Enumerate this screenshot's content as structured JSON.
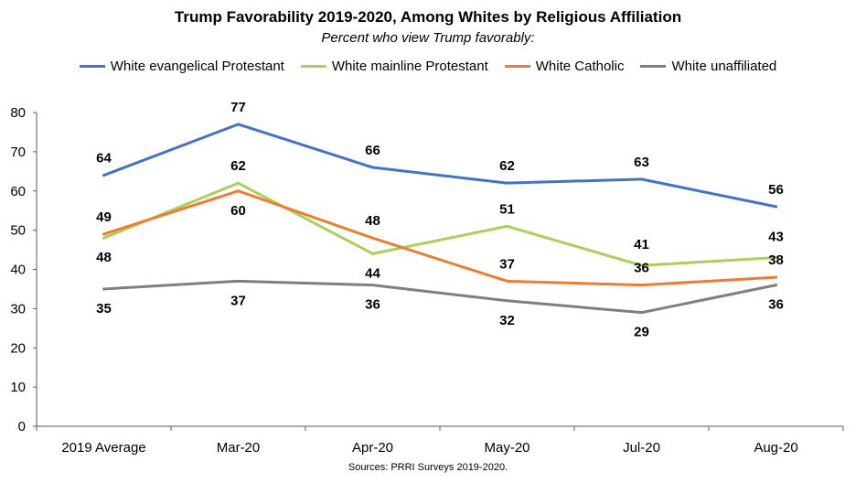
{
  "chart_data": {
    "type": "line",
    "title": "Trump Favorability 2019-2020, Among Whites by Religious Affiliation",
    "subtitle": "Percent who view Trump favorably:",
    "categories": [
      "2019 Average",
      "Mar-20",
      "Apr-20",
      "May-20",
      "Jul-20",
      "Aug-20"
    ],
    "ylim": [
      0,
      80
    ],
    "yticks": [
      "0",
      "10",
      "20",
      "30",
      "40",
      "50",
      "60",
      "70",
      "80"
    ],
    "legend_position": "top",
    "grid": false,
    "series": [
      {
        "name": "White evangelical Protestant",
        "color": "#4472C4",
        "values": [
          64,
          77,
          66,
          62,
          63,
          56
        ]
      },
      {
        "name": "White mainline Protestant",
        "color": "#A9D15A",
        "values": [
          48,
          62,
          44,
          51,
          41,
          43
        ]
      },
      {
        "name": "White Catholic",
        "color": "#ED7D31",
        "values": [
          49,
          60,
          48,
          37,
          36,
          38
        ]
      },
      {
        "name": "White unaffiliated",
        "color": "#7F7F7F",
        "values": [
          35,
          37,
          36,
          32,
          29,
          36
        ]
      }
    ],
    "source": "Sources: PRRI Surveys 2019-2020."
  }
}
